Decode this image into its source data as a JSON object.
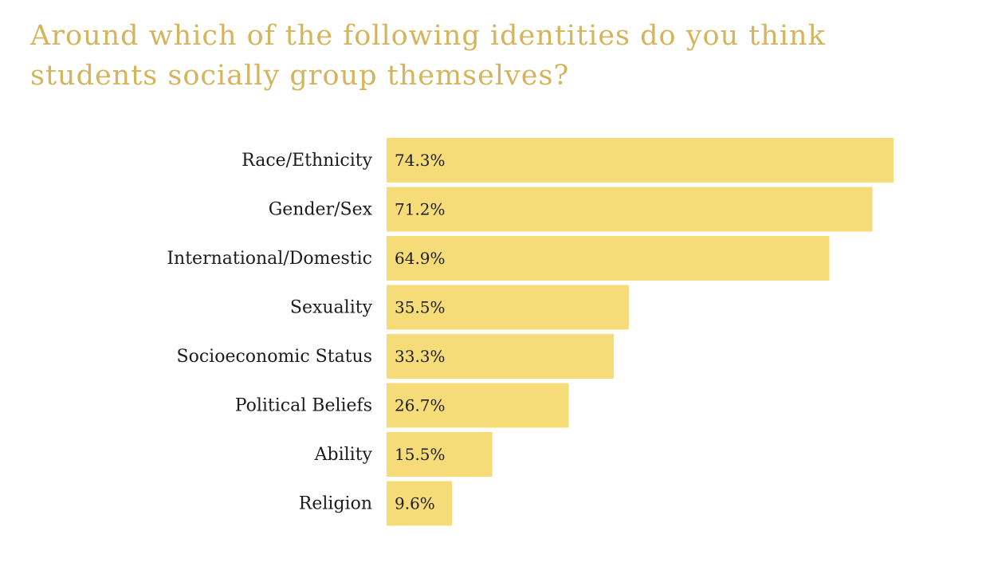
{
  "chart_data": {
    "type": "bar",
    "orientation": "horizontal",
    "title": "Around which of the following identities do you think students socially group themselves?",
    "categories": [
      "Race/Ethnicity",
      "Gender/Sex",
      "International/Domestic",
      "Sexuality",
      "Socioeconomic Status",
      "Political Beliefs",
      "Ability",
      "Religion"
    ],
    "values": [
      74.3,
      71.2,
      64.9,
      35.5,
      33.3,
      26.7,
      15.5,
      9.6
    ],
    "value_labels": [
      "74.3%",
      "71.2%",
      "64.9%",
      "35.5%",
      "33.3%",
      "26.7%",
      "15.5%",
      "9.6%"
    ],
    "xlim": [
      0,
      74.3
    ],
    "grid": false,
    "legend": "none",
    "colors": {
      "title": "#d4b45c",
      "bar": "#f5dc78",
      "text": "#1c1c1c"
    }
  }
}
